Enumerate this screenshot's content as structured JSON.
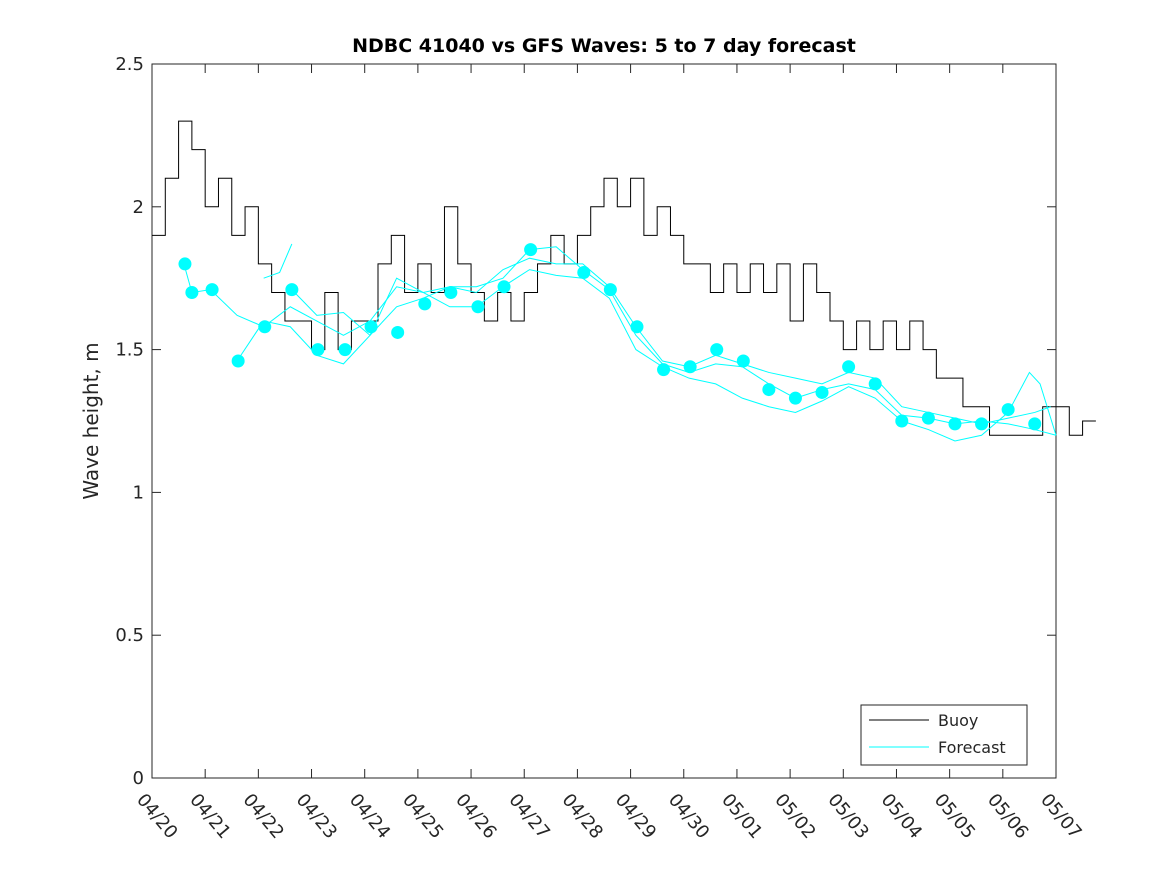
{
  "chart_data": {
    "type": "line",
    "title": "NDBC 41040 vs GFS Waves: 5 to 7 day forecast",
    "xlabel": "",
    "ylabel": "Wave height, m",
    "xlim": [
      0,
      17
    ],
    "ylim": [
      0,
      2.5
    ],
    "x_units": "days since 04/20",
    "x_tick_labels": [
      "04/20",
      "04/21",
      "04/22",
      "04/23",
      "04/24",
      "04/25",
      "04/26",
      "04/27",
      "04/28",
      "04/29",
      "04/30",
      "05/01",
      "05/02",
      "05/03",
      "05/04",
      "05/05",
      "05/06",
      "05/07"
    ],
    "y_ticks": [
      0,
      0.5,
      1,
      1.5,
      2,
      2.5
    ],
    "y_tick_labels": [
      "0",
      "0.5",
      "1",
      "1.5",
      "2",
      "2.5"
    ],
    "grid": false,
    "legend": {
      "position": "bottom-right",
      "entries": [
        "Buoy",
        "Forecast"
      ]
    },
    "colors": {
      "buoy": "#000000",
      "forecast": "#00ffff"
    },
    "buoy": {
      "name": "Buoy",
      "x_step_days": 0.25,
      "values": [
        1.9,
        2.1,
        2.3,
        2.2,
        2.0,
        2.1,
        1.9,
        2.0,
        1.8,
        1.7,
        1.6,
        1.6,
        1.5,
        1.7,
        1.5,
        1.6,
        1.6,
        1.8,
        1.9,
        1.7,
        1.8,
        1.7,
        2.0,
        1.8,
        1.7,
        1.6,
        1.7,
        1.6,
        1.7,
        1.8,
        1.9,
        1.8,
        1.9,
        2.0,
        2.1,
        2.0,
        2.1,
        1.9,
        2.0,
        1.9,
        1.8,
        1.8,
        1.7,
        1.8,
        1.7,
        1.8,
        1.7,
        1.8,
        1.6,
        1.8,
        1.7,
        1.6,
        1.5,
        1.6,
        1.5,
        1.6,
        1.5,
        1.6,
        1.5,
        1.4,
        1.4,
        1.3,
        1.3,
        1.2,
        1.2,
        1.2,
        1.2,
        1.3,
        1.3,
        1.2,
        1.25
      ]
    },
    "forecast_lines": [
      {
        "name": "Forecast",
        "points": [
          [
            0.6,
            1.8
          ],
          [
            0.75,
            1.7
          ],
          [
            1.1,
            1.71
          ],
          [
            1.6,
            1.62
          ],
          [
            2.1,
            1.58
          ],
          [
            2.6,
            1.65
          ],
          [
            3.1,
            1.6
          ],
          [
            3.6,
            1.55
          ],
          [
            4.1,
            1.6
          ],
          [
            4.6,
            1.72
          ],
          [
            5.1,
            1.7
          ],
          [
            5.6,
            1.72
          ],
          [
            6.1,
            1.72
          ],
          [
            6.6,
            1.75
          ],
          [
            7.1,
            1.85
          ],
          [
            7.6,
            1.86
          ],
          [
            8.1,
            1.78
          ],
          [
            8.6,
            1.71
          ],
          [
            9.1,
            1.55
          ],
          [
            9.6,
            1.45
          ],
          [
            10.1,
            1.42
          ],
          [
            10.6,
            1.45
          ],
          [
            11.1,
            1.44
          ],
          [
            11.6,
            1.38
          ],
          [
            12.1,
            1.33
          ],
          [
            12.6,
            1.36
          ],
          [
            13.1,
            1.38
          ],
          [
            13.6,
            1.36
          ],
          [
            14.1,
            1.27
          ],
          [
            14.6,
            1.26
          ],
          [
            15.1,
            1.24
          ],
          [
            15.6,
            1.25
          ],
          [
            16.1,
            1.24
          ],
          [
            16.6,
            1.22
          ],
          [
            17,
            1.2
          ]
        ]
      },
      {
        "name": "Forecast",
        "points": [
          [
            1.6,
            1.46
          ],
          [
            2.1,
            1.6
          ],
          [
            2.6,
            1.58
          ],
          [
            3.1,
            1.48
          ],
          [
            3.6,
            1.45
          ],
          [
            4.1,
            1.55
          ],
          [
            4.6,
            1.75
          ],
          [
            5.1,
            1.7
          ],
          [
            5.6,
            1.65
          ],
          [
            6.1,
            1.65
          ],
          [
            6.6,
            1.72
          ],
          [
            7.1,
            1.78
          ],
          [
            7.6,
            1.76
          ],
          [
            8.1,
            1.75
          ],
          [
            8.6,
            1.68
          ],
          [
            9.1,
            1.5
          ],
          [
            9.6,
            1.44
          ],
          [
            10.1,
            1.4
          ],
          [
            10.6,
            1.38
          ],
          [
            11.1,
            1.33
          ],
          [
            11.6,
            1.3
          ],
          [
            12.1,
            1.28
          ],
          [
            12.6,
            1.32
          ],
          [
            13.1,
            1.37
          ],
          [
            13.6,
            1.33
          ],
          [
            14.1,
            1.25
          ],
          [
            14.6,
            1.22
          ],
          [
            15.1,
            1.18
          ],
          [
            15.6,
            1.2
          ],
          [
            16.1,
            1.28
          ],
          [
            16.5,
            1.42
          ],
          [
            16.7,
            1.38
          ],
          [
            17,
            1.2
          ]
        ]
      },
      {
        "name": "Forecast",
        "points": [
          [
            2.1,
            1.75
          ],
          [
            2.4,
            1.77
          ],
          [
            2.63,
            1.87
          ]
        ]
      },
      {
        "name": "Forecast",
        "points": [
          [
            2.63,
            1.71
          ],
          [
            3.1,
            1.62
          ],
          [
            3.6,
            1.63
          ],
          [
            4.1,
            1.55
          ],
          [
            4.6,
            1.65
          ],
          [
            5.1,
            1.68
          ],
          [
            5.6,
            1.72
          ],
          [
            6.1,
            1.7
          ],
          [
            6.6,
            1.78
          ],
          [
            7.1,
            1.82
          ],
          [
            7.6,
            1.8
          ],
          [
            8.1,
            1.8
          ],
          [
            8.6,
            1.72
          ],
          [
            9.1,
            1.58
          ],
          [
            9.6,
            1.46
          ],
          [
            10.1,
            1.44
          ],
          [
            10.6,
            1.48
          ],
          [
            11.1,
            1.45
          ],
          [
            11.6,
            1.42
          ],
          [
            12.1,
            1.4
          ],
          [
            12.6,
            1.38
          ],
          [
            13.1,
            1.42
          ],
          [
            13.6,
            1.4
          ],
          [
            14.1,
            1.3
          ],
          [
            14.6,
            1.28
          ],
          [
            15.1,
            1.26
          ],
          [
            15.6,
            1.24
          ],
          [
            16.1,
            1.26
          ],
          [
            16.6,
            1.28
          ],
          [
            16.9,
            1.3
          ]
        ]
      }
    ],
    "forecast_markers": [
      [
        0.62,
        1.8
      ],
      [
        0.75,
        1.7
      ],
      [
        1.13,
        1.71
      ],
      [
        1.62,
        1.46
      ],
      [
        2.12,
        1.58
      ],
      [
        2.63,
        1.71
      ],
      [
        3.12,
        1.5
      ],
      [
        3.63,
        1.5
      ],
      [
        4.12,
        1.58
      ],
      [
        4.62,
        1.56
      ],
      [
        5.13,
        1.66
      ],
      [
        5.62,
        1.7
      ],
      [
        6.13,
        1.65
      ],
      [
        6.62,
        1.72
      ],
      [
        7.12,
        1.85
      ],
      [
        8.12,
        1.77
      ],
      [
        8.62,
        1.71
      ],
      [
        9.12,
        1.58
      ],
      [
        9.62,
        1.43
      ],
      [
        10.12,
        1.44
      ],
      [
        10.62,
        1.5
      ],
      [
        11.12,
        1.46
      ],
      [
        11.6,
        1.36
      ],
      [
        12.1,
        1.33
      ],
      [
        12.6,
        1.35
      ],
      [
        13.1,
        1.44
      ],
      [
        13.6,
        1.38
      ],
      [
        14.1,
        1.25
      ],
      [
        14.6,
        1.26
      ],
      [
        15.1,
        1.24
      ],
      [
        15.6,
        1.24
      ],
      [
        16.1,
        1.29
      ],
      [
        16.6,
        1.24
      ]
    ]
  }
}
